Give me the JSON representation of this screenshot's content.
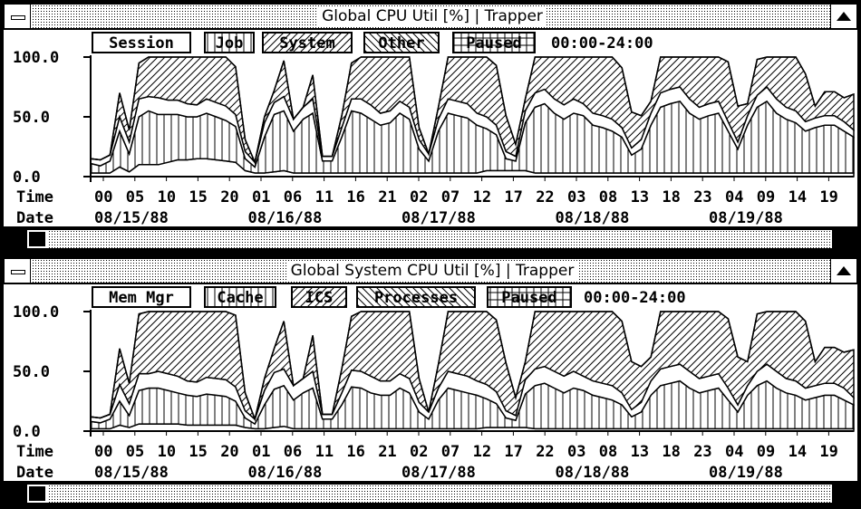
{
  "windows": [
    {
      "title": "Global CPU Util [%] | Trapper",
      "legend": [
        "Session",
        "Job",
        "System",
        "Other",
        "Paused"
      ],
      "time_range": "00:00-24:00",
      "chart_data": {
        "type": "area",
        "stacked": true,
        "y_ticks": [
          "100.0",
          "50.0",
          "0.0"
        ],
        "ylim": [
          0,
          100
        ],
        "x_label_time": "Time",
        "x_label_date": "Date",
        "time_ticks": [
          "00",
          "05",
          "10",
          "15",
          "20",
          "01",
          "06",
          "11",
          "16",
          "21",
          "02",
          "07",
          "12",
          "17",
          "22",
          "03",
          "08",
          "13",
          "18",
          "23",
          "04",
          "09",
          "14",
          "19"
        ],
        "date_ticks": [
          "08/15/88",
          "08/16/88",
          "08/17/88",
          "08/18/88",
          "08/19/88"
        ],
        "series": [
          {
            "name": "Session",
            "values": [
              3,
              3,
              3,
              8,
              4,
              10,
              10,
              10,
              12,
              14,
              14,
              15,
              15,
              14,
              13,
              12,
              5,
              3,
              3,
              4,
              5,
              3,
              3,
              3,
              3,
              3,
              3,
              3,
              3,
              3,
              3,
              3,
              3,
              3,
              3,
              3,
              3,
              3,
              3,
              3,
              3,
              5,
              5,
              5,
              5,
              5,
              3,
              3,
              3,
              3,
              3,
              3,
              3,
              3,
              3,
              3,
              3,
              3,
              3,
              3,
              3,
              3,
              3,
              3,
              3,
              3,
              3,
              3,
              3,
              3,
              3,
              3,
              3,
              3,
              3,
              3,
              3,
              3,
              3,
              3
            ]
          },
          {
            "name": "Job",
            "values": [
              8,
              6,
              10,
              30,
              15,
              40,
              45,
              42,
              40,
              38,
              36,
              35,
              38,
              36,
              34,
              30,
              10,
              5,
              30,
              48,
              50,
              35,
              45,
              50,
              10,
              10,
              30,
              52,
              50,
              45,
              40,
              42,
              50,
              45,
              20,
              10,
              35,
              50,
              48,
              46,
              40,
              35,
              30,
              10,
              8,
              40,
              55,
              58,
              50,
              45,
              50,
              48,
              40,
              38,
              35,
              30,
              15,
              20,
              40,
              55,
              58,
              60,
              50,
              45,
              48,
              50,
              35,
              20,
              40,
              55,
              60,
              50,
              45,
              42,
              35,
              38,
              40,
              40,
              35,
              30
            ]
          },
          {
            "name": "System",
            "values": [
              4,
              5,
              5,
              12,
              10,
              15,
              12,
              14,
              12,
              12,
              11,
              10,
              12,
              12,
              12,
              10,
              6,
              4,
              12,
              10,
              12,
              10,
              10,
              12,
              4,
              4,
              8,
              10,
              12,
              12,
              10,
              10,
              10,
              10,
              8,
              6,
              10,
              12,
              12,
              12,
              10,
              10,
              8,
              6,
              4,
              10,
              12,
              12,
              12,
              12,
              12,
              10,
              10,
              10,
              10,
              8,
              6,
              8,
              10,
              12,
              12,
              12,
              12,
              10,
              10,
              10,
              8,
              6,
              8,
              10,
              12,
              12,
              10,
              10,
              8,
              8,
              8,
              8,
              8,
              6
            ]
          },
          {
            "name": "Other",
            "values": [
              0,
              0,
              0,
              20,
              10,
              30,
              33,
              34,
              36,
              36,
              39,
              40,
              35,
              38,
              41,
              40,
              10,
              0,
              5,
              10,
              30,
              0,
              0,
              20,
              0,
              0,
              10,
              30,
              38,
              40,
              50,
              48,
              40,
              42,
              10,
              0,
              10,
              38,
              40,
              42,
              50,
              52,
              50,
              30,
              10,
              10,
              30,
              30,
              38,
              40,
              35,
              42,
              50,
              50,
              52,
              50,
              30,
              20,
              10,
              30,
              30,
              28,
              35,
              42,
              40,
              38,
              50,
              30,
              10,
              30,
              28,
              38,
              45,
              45,
              40,
              10,
              20,
              20,
              20,
              30
            ]
          },
          {
            "name": "Paused",
            "values": [
              0,
              0,
              0,
              0,
              0,
              0,
              0,
              0,
              0,
              0,
              0,
              0,
              0,
              0,
              0,
              0,
              0,
              0,
              0,
              0,
              0,
              0,
              0,
              0,
              0,
              0,
              0,
              0,
              0,
              0,
              0,
              0,
              0,
              0,
              0,
              0,
              0,
              0,
              0,
              0,
              0,
              0,
              0,
              0,
              0,
              0,
              0,
              0,
              0,
              0,
              0,
              0,
              0,
              0,
              0,
              0,
              0,
              0,
              0,
              0,
              0,
              0,
              0,
              0,
              0,
              0,
              0,
              0,
              0,
              0,
              0,
              0,
              0,
              0,
              0,
              0,
              0,
              0,
              0,
              0
            ]
          }
        ]
      }
    },
    {
      "title": "Global System CPU Util [%] | Trapper",
      "legend": [
        "Mem Mgr",
        "Cache",
        "ICS",
        "Processes",
        "Paused"
      ],
      "time_range": "00:00-24:00",
      "chart_data": {
        "type": "area",
        "stacked": true,
        "y_ticks": [
          "100.0",
          "50.0",
          "0.0"
        ],
        "ylim": [
          0,
          100
        ],
        "x_label_time": "Time",
        "x_label_date": "Date",
        "time_ticks": [
          "00",
          "05",
          "10",
          "15",
          "20",
          "01",
          "06",
          "11",
          "16",
          "21",
          "02",
          "07",
          "12",
          "17",
          "22",
          "03",
          "08",
          "13",
          "18",
          "23",
          "04",
          "09",
          "14",
          "19"
        ],
        "date_ticks": [
          "08/15/88",
          "08/16/88",
          "08/17/88",
          "08/18/88",
          "08/19/88"
        ],
        "series": [
          {
            "name": "Mem Mgr",
            "values": [
              2,
              2,
              2,
              5,
              3,
              6,
              6,
              6,
              6,
              6,
              5,
              5,
              5,
              5,
              5,
              5,
              3,
              2,
              2,
              3,
              4,
              2,
              2,
              2,
              2,
              2,
              2,
              2,
              2,
              2,
              2,
              2,
              2,
              2,
              2,
              2,
              2,
              2,
              2,
              2,
              2,
              3,
              3,
              3,
              3,
              3,
              2,
              2,
              2,
              2,
              2,
              2,
              2,
              2,
              2,
              2,
              2,
              2,
              2,
              2,
              2,
              2,
              2,
              2,
              2,
              2,
              2,
              2,
              2,
              2,
              2,
              2,
              2,
              2,
              2,
              2,
              2,
              2,
              2,
              2
            ]
          },
          {
            "name": "Cache",
            "values": [
              6,
              5,
              8,
              20,
              10,
              28,
              30,
              30,
              28,
              26,
              25,
              24,
              26,
              25,
              24,
              20,
              8,
              4,
              20,
              32,
              34,
              24,
              30,
              34,
              8,
              8,
              20,
              35,
              34,
              30,
              28,
              28,
              34,
              30,
              14,
              8,
              24,
              34,
              32,
              30,
              28,
              24,
              20,
              8,
              6,
              28,
              36,
              38,
              34,
              30,
              34,
              32,
              28,
              26,
              24,
              20,
              10,
              14,
              28,
              36,
              38,
              40,
              34,
              30,
              32,
              34,
              24,
              14,
              28,
              36,
              40,
              34,
              30,
              28,
              24,
              26,
              28,
              28,
              24,
              20
            ]
          },
          {
            "name": "ICS",
            "values": [
              4,
              4,
              4,
              14,
              10,
              14,
              12,
              14,
              14,
              14,
              12,
              12,
              14,
              14,
              14,
              12,
              6,
              4,
              12,
              14,
              14,
              12,
              12,
              14,
              4,
              4,
              10,
              14,
              14,
              14,
              12,
              12,
              12,
              12,
              8,
              6,
              10,
              14,
              14,
              14,
              12,
              12,
              10,
              6,
              4,
              12,
              14,
              14,
              14,
              14,
              14,
              12,
              12,
              12,
              12,
              10,
              6,
              8,
              12,
              14,
              14,
              14,
              14,
              12,
              12,
              12,
              10,
              6,
              8,
              12,
              14,
              14,
              12,
              12,
              10,
              10,
              10,
              10,
              10,
              6
            ]
          },
          {
            "name": "Processes",
            "values": [
              0,
              0,
              0,
              30,
              17,
              50,
              52,
              50,
              52,
              54,
              58,
              59,
              55,
              56,
              57,
              60,
              15,
              0,
              10,
              20,
              40,
              0,
              0,
              30,
              0,
              0,
              20,
              45,
              50,
              54,
              58,
              58,
              52,
              56,
              20,
              0,
              20,
              50,
              52,
              54,
              58,
              61,
              60,
              40,
              15,
              15,
              48,
              46,
              50,
              54,
              50,
              54,
              58,
              60,
              62,
              60,
              40,
              30,
              20,
              48,
              46,
              44,
              50,
              56,
              54,
              52,
              58,
              40,
              20,
              48,
              44,
              50,
              56,
              58,
              56,
              20,
              30,
              30,
              30,
              40
            ]
          },
          {
            "name": "Paused",
            "values": [
              0,
              0,
              0,
              0,
              0,
              0,
              0,
              0,
              0,
              0,
              0,
              0,
              0,
              0,
              0,
              0,
              0,
              0,
              0,
              0,
              0,
              0,
              0,
              0,
              0,
              0,
              0,
              0,
              0,
              0,
              0,
              0,
              0,
              0,
              0,
              0,
              0,
              0,
              0,
              0,
              0,
              0,
              0,
              0,
              0,
              0,
              0,
              0,
              0,
              0,
              0,
              0,
              0,
              0,
              0,
              0,
              0,
              0,
              0,
              0,
              0,
              0,
              0,
              0,
              0,
              0,
              0,
              0,
              0,
              0,
              0,
              0,
              0,
              0,
              0,
              0,
              0,
              0,
              0,
              0
            ]
          }
        ]
      }
    }
  ]
}
